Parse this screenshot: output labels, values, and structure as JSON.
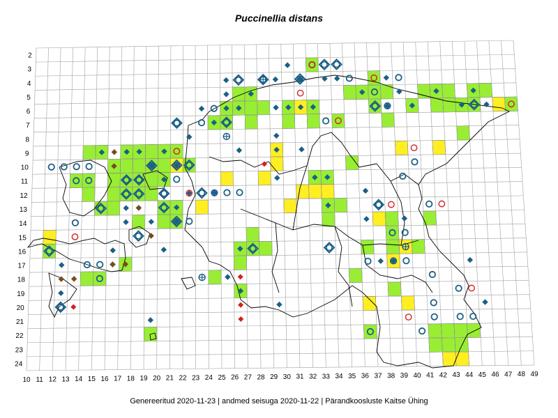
{
  "title": "Puccinellia distans",
  "footer": "Genereeritud 2020-11-23  |  andmed seisuga 2020-11-22  |  Pärandkoosluste Kaitse Ühing",
  "grid": {
    "columns": [
      10,
      11,
      12,
      13,
      14,
      15,
      16,
      17,
      18,
      19,
      20,
      21,
      22,
      23,
      24,
      25,
      26,
      27,
      28,
      29,
      30,
      31,
      32,
      33,
      34,
      35,
      36,
      37,
      38,
      39,
      40,
      41,
      42,
      43,
      44,
      45,
      46,
      47,
      48,
      49
    ],
    "rows": [
      2,
      3,
      4,
      5,
      6,
      7,
      8,
      9,
      10,
      11,
      12,
      13,
      14,
      15,
      16,
      17,
      18,
      19,
      20,
      21,
      22,
      23,
      24
    ]
  },
  "colors": {
    "green_cell": "#99ee33",
    "yellow_cell": "#ffee22",
    "blue_marker": "#1b5f86",
    "brown_marker": "#7a4a1e",
    "red_marker": "#d42020",
    "grid_line": "#a0a0a0",
    "boundary": "#000000"
  },
  "green_cells": [
    [
      32,
      3
    ],
    [
      37,
      4
    ],
    [
      26,
      5
    ],
    [
      27,
      5
    ],
    [
      35,
      5
    ],
    [
      36,
      5
    ],
    [
      37,
      5
    ],
    [
      38,
      5
    ],
    [
      41,
      5
    ],
    [
      42,
      5
    ],
    [
      43,
      5
    ],
    [
      45,
      5
    ],
    [
      46,
      5
    ],
    [
      25,
      6
    ],
    [
      26,
      6
    ],
    [
      27,
      6
    ],
    [
      28,
      6
    ],
    [
      30,
      6
    ],
    [
      31,
      6
    ],
    [
      32,
      6
    ],
    [
      37,
      6
    ],
    [
      40,
      6
    ],
    [
      42,
      6
    ],
    [
      43,
      6
    ],
    [
      44,
      6
    ],
    [
      45,
      6
    ],
    [
      48,
      6
    ],
    [
      24,
      7
    ],
    [
      25,
      7
    ],
    [
      27,
      7
    ],
    [
      30,
      7
    ],
    [
      32,
      7
    ],
    [
      34,
      7
    ],
    [
      38,
      7
    ],
    [
      44,
      8
    ],
    [
      14,
      9
    ],
    [
      15,
      9
    ],
    [
      17,
      9
    ],
    [
      18,
      9
    ],
    [
      19,
      9
    ],
    [
      20,
      9
    ],
    [
      21,
      9
    ],
    [
      16,
      10
    ],
    [
      17,
      10
    ],
    [
      18,
      10
    ],
    [
      19,
      10
    ],
    [
      20,
      10
    ],
    [
      21,
      10
    ],
    [
      22,
      10
    ],
    [
      35,
      10
    ],
    [
      13,
      11
    ],
    [
      14,
      11
    ],
    [
      16,
      11
    ],
    [
      17,
      11
    ],
    [
      18,
      11
    ],
    [
      19,
      11
    ],
    [
      20,
      11
    ],
    [
      32,
      11
    ],
    [
      33,
      11
    ],
    [
      14,
      12
    ],
    [
      16,
      12
    ],
    [
      17,
      12
    ],
    [
      18,
      12
    ],
    [
      19,
      12
    ],
    [
      15,
      13
    ],
    [
      16,
      13
    ],
    [
      20,
      13
    ],
    [
      21,
      13
    ],
    [
      34,
      13
    ],
    [
      33,
      13
    ],
    [
      18,
      14
    ],
    [
      20,
      14
    ],
    [
      21,
      14
    ],
    [
      33,
      14
    ],
    [
      38,
      14
    ],
    [
      41,
      14
    ],
    [
      27,
      15
    ],
    [
      38,
      15
    ],
    [
      11,
      16
    ],
    [
      26,
      16
    ],
    [
      27,
      16
    ],
    [
      28,
      16
    ],
    [
      36,
      16
    ],
    [
      38,
      16
    ],
    [
      40,
      16
    ],
    [
      17,
      17
    ],
    [
      26,
      17
    ],
    [
      14,
      18
    ],
    [
      15,
      18
    ],
    [
      24,
      18
    ],
    [
      35,
      18
    ],
    [
      26,
      19
    ],
    [
      38,
      19
    ],
    [
      36,
      22
    ],
    [
      41,
      22
    ],
    [
      42,
      22
    ],
    [
      43,
      22
    ],
    [
      44,
      22
    ],
    [
      19,
      22
    ],
    [
      41,
      23
    ],
    [
      42,
      23
    ],
    [
      43,
      23
    ]
  ],
  "yellow_cells": [
    [
      31,
      6
    ],
    [
      47,
      6
    ],
    [
      29,
      9
    ],
    [
      39,
      9
    ],
    [
      42,
      9
    ],
    [
      29,
      10
    ],
    [
      21,
      10
    ],
    [
      25,
      11
    ],
    [
      28,
      11
    ],
    [
      31,
      12
    ],
    [
      32,
      12
    ],
    [
      23,
      13
    ],
    [
      30,
      13
    ],
    [
      37,
      14
    ],
    [
      11,
      15
    ],
    [
      39,
      16
    ],
    [
      38,
      17
    ],
    [
      36,
      20
    ],
    [
      39,
      20
    ],
    [
      42,
      24
    ],
    [
      43,
      24
    ],
    [
      33,
      12
    ]
  ],
  "markers": {
    "blue_diamonds": [
      [
        30,
        3
      ],
      [
        25,
        4
      ],
      [
        29,
        4
      ],
      [
        31,
        4
      ],
      [
        33,
        4
      ],
      [
        34,
        4
      ],
      [
        38,
        4
      ],
      [
        36,
        5
      ],
      [
        39,
        5
      ],
      [
        42,
        5
      ],
      [
        45,
        5
      ],
      [
        25,
        5
      ],
      [
        27,
        5
      ],
      [
        26,
        6
      ],
      [
        29,
        6
      ],
      [
        30,
        6
      ],
      [
        31,
        6
      ],
      [
        32,
        6
      ],
      [
        38,
        6
      ],
      [
        40,
        6
      ],
      [
        44,
        6
      ],
      [
        46,
        6
      ],
      [
        24,
        7
      ],
      [
        23,
        6
      ],
      [
        25,
        6
      ],
      [
        22,
        8
      ],
      [
        29,
        8
      ],
      [
        15,
        9
      ],
      [
        17,
        9
      ],
      [
        18,
        9
      ],
      [
        20,
        9
      ],
      [
        26,
        9
      ],
      [
        29,
        9
      ],
      [
        31,
        9
      ],
      [
        19,
        10
      ],
      [
        21,
        10
      ],
      [
        20,
        11
      ],
      [
        33,
        11
      ],
      [
        32,
        11
      ],
      [
        29,
        11
      ],
      [
        22,
        12
      ],
      [
        24,
        12
      ],
      [
        36,
        12
      ],
      [
        17,
        13
      ],
      [
        18,
        13
      ],
      [
        21,
        13
      ],
      [
        33,
        13
      ],
      [
        19,
        14
      ],
      [
        21,
        14
      ],
      [
        17,
        14
      ],
      [
        39,
        14
      ],
      [
        36,
        14
      ],
      [
        16,
        16
      ],
      [
        26,
        16
      ],
      [
        20,
        16
      ],
      [
        12,
        17
      ],
      [
        16,
        17
      ],
      [
        37,
        17
      ],
      [
        38,
        17
      ],
      [
        44,
        17
      ],
      [
        25,
        18
      ],
      [
        12,
        19
      ],
      [
        26,
        19
      ],
      [
        29,
        20
      ],
      [
        45,
        20
      ],
      [
        19,
        21
      ]
    ],
    "blue_circles": [
      [
        32,
        3
      ],
      [
        35,
        4
      ],
      [
        39,
        4
      ],
      [
        37,
        5
      ],
      [
        38,
        6
      ],
      [
        24,
        6
      ],
      [
        21,
        7
      ],
      [
        23,
        7
      ],
      [
        25,
        7
      ],
      [
        33,
        7
      ],
      [
        11,
        10
      ],
      [
        12,
        10
      ],
      [
        13,
        10
      ],
      [
        14,
        10
      ],
      [
        21,
        11
      ],
      [
        13,
        11
      ],
      [
        14,
        11
      ],
      [
        17,
        11
      ],
      [
        18,
        11
      ],
      [
        40,
        10
      ],
      [
        39,
        11
      ],
      [
        20,
        12
      ],
      [
        24,
        12
      ],
      [
        25,
        12
      ],
      [
        26,
        12
      ],
      [
        13,
        14
      ],
      [
        22,
        14
      ],
      [
        37,
        13
      ],
      [
        38,
        15
      ],
      [
        39,
        15
      ],
      [
        41,
        13
      ],
      [
        36,
        17
      ],
      [
        38,
        17
      ],
      [
        39,
        17
      ],
      [
        14,
        17
      ],
      [
        15,
        17
      ],
      [
        15,
        18
      ],
      [
        12,
        20
      ],
      [
        41,
        18
      ],
      [
        43,
        19
      ],
      [
        41,
        21
      ],
      [
        43,
        21
      ],
      [
        44,
        21
      ],
      [
        36,
        22
      ],
      [
        40,
        22
      ],
      [
        41,
        20
      ]
    ],
    "blue_ring_diamonds": [
      [
        33,
        3
      ],
      [
        34,
        3
      ],
      [
        26,
        4
      ],
      [
        28,
        4
      ],
      [
        31,
        4
      ],
      [
        37,
        6
      ],
      [
        45,
        6
      ],
      [
        21,
        7
      ],
      [
        25,
        7
      ],
      [
        19,
        10
      ],
      [
        21,
        10
      ],
      [
        22,
        10
      ],
      [
        17,
        11
      ],
      [
        18,
        11
      ],
      [
        17,
        12
      ],
      [
        15,
        13
      ],
      [
        20,
        13
      ],
      [
        20,
        12
      ],
      [
        21,
        14
      ],
      [
        18,
        15
      ],
      [
        11,
        16
      ],
      [
        27,
        16
      ],
      [
        33,
        16
      ],
      [
        37,
        13
      ],
      [
        23,
        12
      ],
      [
        18,
        12
      ],
      [
        12,
        20
      ]
    ],
    "blue_crosshair": [
      [
        28,
        4
      ],
      [
        25,
        8
      ],
      [
        39,
        16
      ],
      [
        23,
        18
      ]
    ],
    "brown_diamonds": [
      [
        16,
        9
      ],
      [
        16,
        10
      ],
      [
        18,
        13
      ],
      [
        19,
        15
      ],
      [
        13,
        18
      ],
      [
        12,
        18
      ],
      [
        16,
        17
      ],
      [
        17,
        17
      ]
    ],
    "red_circles": [
      [
        32,
        3
      ],
      [
        37,
        4
      ],
      [
        31,
        5
      ],
      [
        48,
        6
      ],
      [
        34,
        7
      ],
      [
        21,
        9
      ],
      [
        40,
        9
      ],
      [
        22,
        12
      ],
      [
        38,
        13
      ],
      [
        42,
        13
      ],
      [
        13,
        15
      ],
      [
        44,
        19
      ],
      [
        39,
        21
      ],
      [
        12,
        20
      ]
    ],
    "red_diamonds": [
      [
        28,
        10
      ],
      [
        26,
        18
      ],
      [
        26,
        20
      ],
      [
        26,
        21
      ],
      [
        13,
        20
      ]
    ]
  }
}
